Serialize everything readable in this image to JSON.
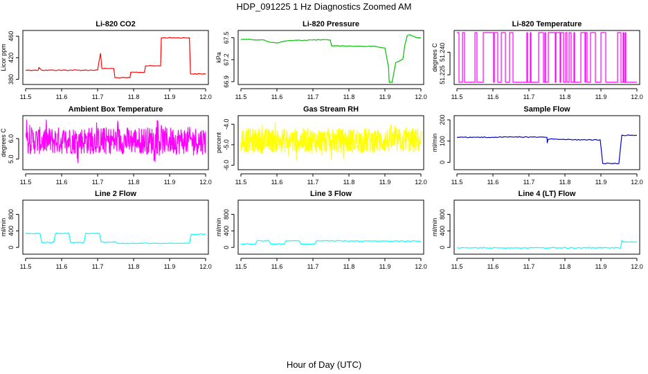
{
  "figure": {
    "title": "HDP_091225  1 Hz Diagnostics Zoomed AM",
    "xlabel": "Hour of Day (UTC)"
  },
  "chart_data": [
    {
      "type": "line",
      "title": "Li-820 CO2",
      "ylabel": "Licor ppm",
      "color": "#ff0000",
      "xlim": [
        11.5,
        12.0
      ],
      "ylim": [
        373,
        468
      ],
      "xticks": [
        "11.5",
        "11.6",
        "11.7",
        "11.8",
        "11.9",
        "12.0"
      ],
      "yticks": [
        380,
        420,
        460
      ],
      "x": [
        11.5,
        11.535,
        11.537,
        11.545,
        11.7,
        11.703,
        11.708,
        11.712,
        11.745,
        11.748,
        11.79,
        11.792,
        11.83,
        11.833,
        11.875,
        11.877,
        11.955,
        11.958,
        12.0
      ],
      "y": [
        397,
        397,
        402,
        397,
        397,
        410,
        428,
        400,
        400,
        383,
        383,
        393,
        393,
        405,
        405,
        457,
        457,
        390,
        390
      ]
    },
    {
      "type": "line",
      "title": "Li-820 Pressure",
      "ylabel": "kPa",
      "color": "#00c000",
      "xlim": [
        11.5,
        12.0
      ],
      "ylim": [
        66.88,
        67.58
      ],
      "xticks": [
        "11.5",
        "11.6",
        "11.7",
        "11.8",
        "11.9",
        "12.0"
      ],
      "yticks": [
        "66.9",
        "67.2",
        "67.5"
      ],
      "x": [
        11.5,
        11.56,
        11.58,
        11.6,
        11.63,
        11.7,
        11.748,
        11.752,
        11.87,
        11.9,
        11.91,
        11.912,
        11.92,
        11.93,
        11.94,
        11.95,
        11.955,
        11.962,
        11.97,
        11.98,
        11.99,
        12.0
      ],
      "y": [
        67.48,
        67.47,
        67.44,
        67.43,
        67.46,
        67.47,
        67.47,
        67.39,
        67.38,
        67.36,
        67.1,
        66.89,
        66.89,
        67.16,
        67.18,
        67.21,
        67.39,
        67.53,
        67.54,
        67.52,
        67.5,
        67.5
      ]
    },
    {
      "type": "line",
      "title": "Li-820 Temperature",
      "ylabel": "degrees C",
      "color": "#ff00ff",
      "xlim": [
        11.5,
        12.0
      ],
      "ylim": [
        51.2195,
        51.2535
      ],
      "xticks": [
        "11.5",
        "11.6",
        "11.7",
        "11.8",
        "11.9",
        "12.0"
      ],
      "yticks": [
        "51.225",
        "51.240"
      ],
      "note": "signal toggles between two quantized levels",
      "levels": [
        51.2201,
        51.253
      ]
    },
    {
      "type": "line",
      "title": "Ambient Box Temperature",
      "ylabel": "degrees C",
      "color": "#ff00ff",
      "xlim": [
        11.5,
        12.0
      ],
      "ylim": [
        4.55,
        7.05
      ],
      "xticks": [
        "11.5",
        "11.6",
        "11.7",
        "11.8",
        "11.9",
        "12.0"
      ],
      "yticks": [
        "5.0",
        "6.0"
      ],
      "note": "noisy signal",
      "mean": 5.9,
      "range": [
        4.7,
        6.9
      ]
    },
    {
      "type": "line",
      "title": "Gas Stream RH",
      "ylabel": "percent",
      "color": "#ffff00",
      "xlim": [
        11.5,
        12.0
      ],
      "ylim": [
        -6.15,
        -3.65
      ],
      "xticks": [
        "11.5",
        "11.6",
        "11.7",
        "11.8",
        "11.9",
        "12.0"
      ],
      "yticks": [
        "-6.0",
        "-5.0",
        "-4.0"
      ],
      "note": "noisy signal",
      "mean": -4.8,
      "range": [
        -5.9,
        -3.9
      ]
    },
    {
      "type": "line",
      "title": "Sample Flow",
      "ylabel": "ml/min",
      "color": "#0000cc",
      "xlim": [
        11.5,
        12.0
      ],
      "ylim": [
        -28,
        213
      ],
      "xticks": [
        "11.5",
        "11.6",
        "11.7",
        "11.8",
        "11.9",
        "12.0"
      ],
      "yticks": [
        0,
        100,
        200
      ],
      "x": [
        11.5,
        11.6,
        11.65,
        11.75,
        11.751,
        11.753,
        11.76,
        11.8,
        11.85,
        11.898,
        11.905,
        11.95,
        11.955,
        11.958,
        12.0
      ],
      "y": [
        118,
        118,
        120,
        118,
        92,
        108,
        110,
        107,
        106,
        106,
        -5,
        -5,
        80,
        128,
        126
      ]
    },
    {
      "type": "line",
      "title": "Line 2 Flow",
      "ylabel": "ml/min",
      "color": "#00ffff",
      "xlim": [
        11.5,
        12.0
      ],
      "ylim": [
        -130,
        1110
      ],
      "xticks": [
        "11.5",
        "11.6",
        "11.7",
        "11.8",
        "11.9",
        "12.0"
      ],
      "yticks": [
        0,
        400,
        800
      ],
      "x": [
        11.5,
        11.54,
        11.545,
        11.578,
        11.583,
        11.62,
        11.625,
        11.662,
        11.667,
        11.705,
        11.71,
        11.75,
        11.755,
        11.955,
        11.96,
        12.0
      ],
      "y": [
        340,
        340,
        120,
        120,
        340,
        340,
        120,
        120,
        340,
        340,
        130,
        130,
        100,
        100,
        320,
        320
      ]
    },
    {
      "type": "line",
      "title": "Line 3 Flow",
      "ylabel": "ml/min",
      "color": "#00ffff",
      "xlim": [
        11.5,
        12.0
      ],
      "ylim": [
        -130,
        1110
      ],
      "xticks": [
        "11.5",
        "11.6",
        "11.7",
        "11.8",
        "11.9",
        "12.0"
      ],
      "yticks": [
        0,
        400,
        800
      ],
      "x": [
        11.5,
        11.54,
        11.545,
        11.578,
        11.583,
        11.62,
        11.625,
        11.662,
        11.667,
        11.705,
        11.71,
        11.75,
        12.0
      ],
      "y": [
        80,
        80,
        160,
        160,
        80,
        80,
        160,
        160,
        80,
        80,
        160,
        160,
        150
      ]
    },
    {
      "type": "line",
      "title": "Line 4 (LT) Flow",
      "ylabel": "ml/min",
      "color": "#00ffff",
      "xlim": [
        11.5,
        12.0
      ],
      "ylim": [
        -130,
        1110
      ],
      "xticks": [
        "11.5",
        "11.6",
        "11.7",
        "11.8",
        "11.9",
        "12.0"
      ],
      "yticks": [
        0,
        400,
        800
      ],
      "x": [
        11.5,
        11.955,
        11.958,
        11.962,
        12.0
      ],
      "y": [
        -10,
        -10,
        170,
        130,
        130
      ]
    }
  ]
}
